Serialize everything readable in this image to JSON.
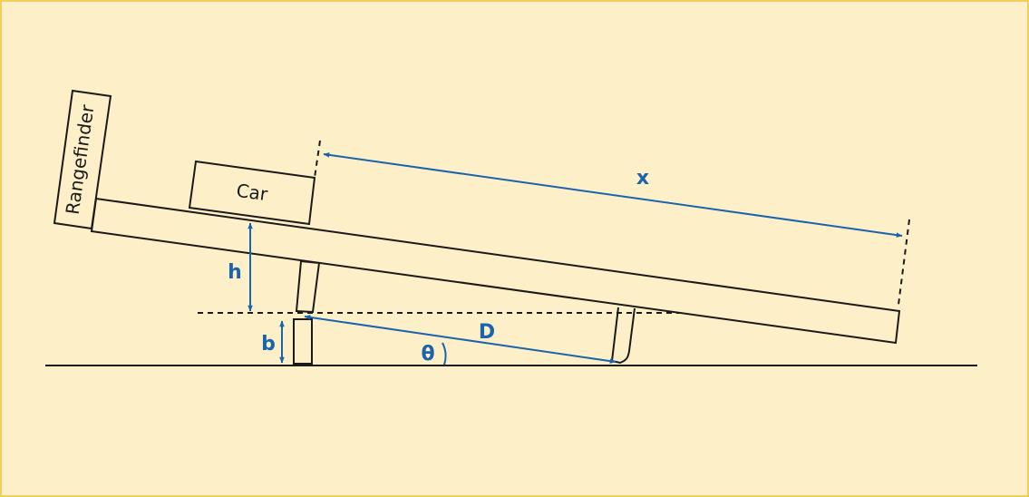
{
  "labels": {
    "rangefinder": "Rangefinder",
    "car": "Car",
    "x": "x",
    "h": "h",
    "b": "b",
    "D": "D",
    "theta": "θ"
  },
  "colors": {
    "background": "#fdf0c8",
    "border": "#f2cf5a",
    "dimension": "#1c63ad",
    "line": "#1a1a1a"
  }
}
